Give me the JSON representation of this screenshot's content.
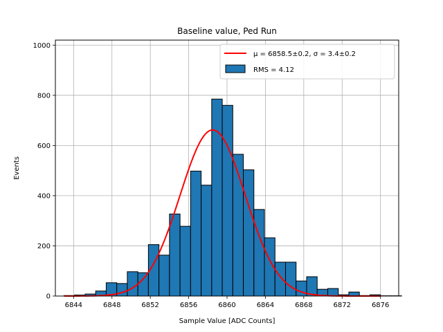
{
  "chart_data": {
    "type": "bar",
    "title": "Baseline value, Ped Run",
    "xlabel": "Sample Value [ADC Counts]",
    "ylabel": "Events",
    "xlim": [
      6842.1,
      6877.9
    ],
    "ylim": [
      0,
      1020
    ],
    "x_ticks": [
      "6844",
      "6848",
      "6852",
      "6856",
      "6860",
      "6864",
      "6868",
      "6872",
      "6876"
    ],
    "y_ticks": [
      "0",
      "200",
      "400",
      "600",
      "800",
      "1000"
    ],
    "grid": true,
    "legend_position": "top-right",
    "histogram": {
      "name": "RMS = 4.12",
      "bin_width": 1.1,
      "bin_edges_start": 6843.0,
      "counts": [
        2,
        4,
        8,
        20,
        53,
        50,
        97,
        93,
        205,
        163,
        327,
        278,
        498,
        442,
        785,
        760,
        565,
        503,
        345,
        232,
        135,
        135,
        60,
        77,
        27,
        30,
        5,
        16,
        2,
        5,
        1,
        1
      ],
      "color": "#1f77b4",
      "edge_color": "#000000"
    },
    "fit": {
      "name": "μ = 6858.5±0.2, σ = 3.4±0.2",
      "mu": 6858.5,
      "sigma": 3.4,
      "amplitude": 662,
      "x_range": [
        6843,
        6876
      ],
      "color": "#ff0000"
    }
  }
}
